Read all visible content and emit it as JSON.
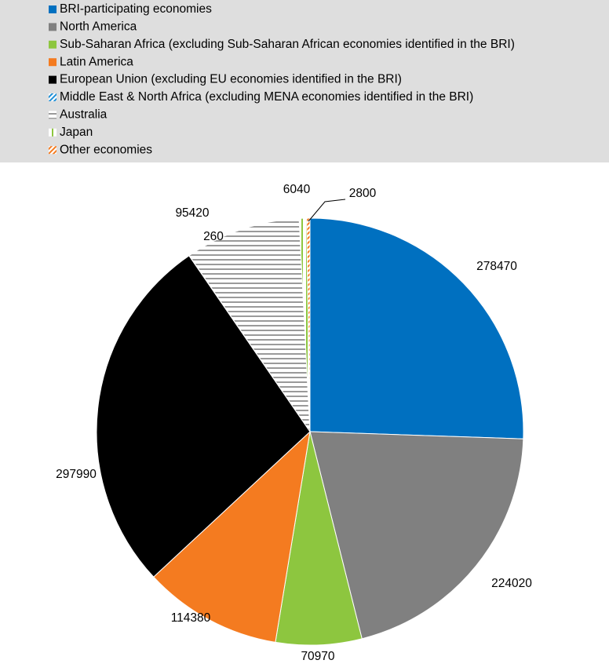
{
  "chart_data": {
    "type": "pie",
    "categories": [
      "BRI-participating economies",
      "North America",
      "Sub-Saharan Africa (excluding Sub-Saharan African economies identified in the BRI)",
      "Latin America",
      "European Union (excluding EU economies identified in the BRI)",
      "Middle East & North Africa (excluding MENA economies identified in the BRI)",
      "Australia",
      "Japan",
      "Other economies"
    ],
    "values": [
      278470,
      224020,
      70970,
      114380,
      297990,
      260,
      95420,
      6040,
      2800
    ],
    "colors": [
      "#0070c0",
      "#808080",
      "#8dc63f",
      "#f47b20",
      "#000000",
      "#1f8fd6",
      "#9a9a9a",
      "#8dc63f",
      "#f47b20"
    ],
    "patterns": [
      "solid",
      "solid",
      "solid",
      "solid",
      "solid",
      "diagonal",
      "horizontal",
      "vertical",
      "diagonal"
    ],
    "legend": "top"
  }
}
